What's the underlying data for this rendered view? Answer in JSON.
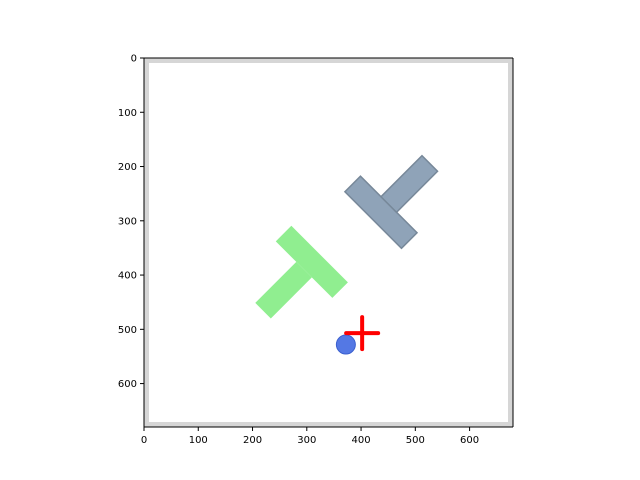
{
  "colors": {
    "background": "#ffffff",
    "frame_border": "#d6d6d6",
    "goal_tee": "#90ee90",
    "block_tee": "#8fa3b8",
    "block_tee_outline": "#778899",
    "agent": "#4169e1",
    "target_marker": "#ff0000"
  },
  "plot": {
    "x_ticks": [
      "0",
      "100",
      "200",
      "300",
      "400",
      "500",
      "600"
    ],
    "y_ticks": [
      "0",
      "100",
      "200",
      "300",
      "400",
      "500",
      "600"
    ],
    "xlim": [
      0,
      680
    ],
    "ylim": [
      680,
      0
    ]
  },
  "scene": {
    "goal_tee": {
      "icon": "t-shape",
      "center": [
        308,
        377
      ],
      "angle_deg": 45
    },
    "block_tee": {
      "icon": "t-shape",
      "center": [
        438,
        283
      ],
      "angle_deg": -135
    },
    "agent": {
      "icon": "circle-icon",
      "position": [
        372,
        528
      ]
    },
    "target": {
      "icon": "crosshair-plus-icon",
      "position": [
        402,
        507
      ]
    }
  }
}
